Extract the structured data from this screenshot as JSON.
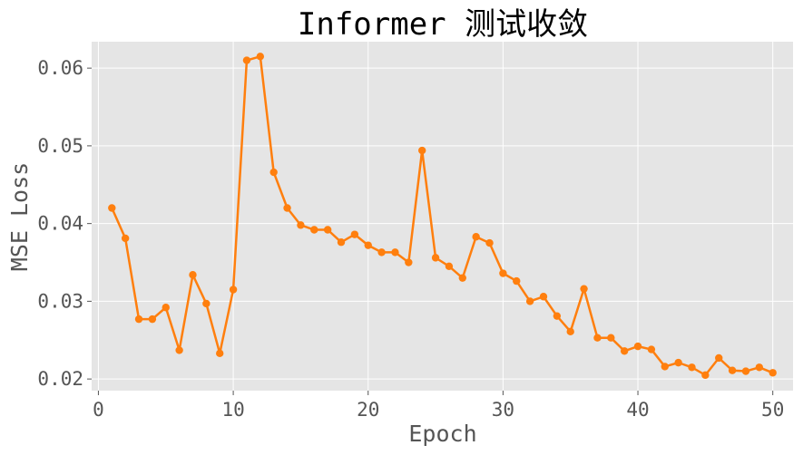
{
  "chart_data": {
    "type": "line",
    "title": "Informer 测试收敛",
    "xlabel": "Epoch",
    "ylabel": "MSE Loss",
    "xlim": [
      -0.5,
      51.5
    ],
    "ylim": [
      0.0185,
      0.0634
    ],
    "xticks": [
      0,
      10,
      20,
      30,
      40,
      50
    ],
    "xtick_labels": [
      "0",
      "10",
      "20",
      "30",
      "40",
      "50"
    ],
    "yticks": [
      0.02,
      0.03,
      0.04,
      0.05,
      0.06
    ],
    "ytick_labels": [
      "0.02",
      "0.03",
      "0.04",
      "0.05",
      "0.06"
    ],
    "grid": true,
    "style": "ggplot",
    "series": [
      {
        "name": "Informer",
        "color": "#ff7f0e",
        "marker": "circle",
        "x": [
          1,
          2,
          3,
          4,
          5,
          6,
          7,
          8,
          9,
          10,
          11,
          12,
          13,
          14,
          15,
          16,
          17,
          18,
          19,
          20,
          21,
          22,
          23,
          24,
          25,
          26,
          27,
          28,
          29,
          30,
          31,
          32,
          33,
          34,
          35,
          36,
          37,
          38,
          39,
          40,
          41,
          42,
          43,
          44,
          45,
          46,
          47,
          48,
          49,
          50
        ],
        "values": [
          0.042,
          0.0381,
          0.0277,
          0.0277,
          0.0292,
          0.0237,
          0.0334,
          0.0297,
          0.0233,
          0.0315,
          0.061,
          0.0615,
          0.0466,
          0.042,
          0.0398,
          0.0392,
          0.0392,
          0.0376,
          0.0386,
          0.0372,
          0.0363,
          0.0363,
          0.035,
          0.0494,
          0.0356,
          0.0345,
          0.033,
          0.0383,
          0.0375,
          0.0336,
          0.0326,
          0.03,
          0.0306,
          0.0281,
          0.0261,
          0.0316,
          0.0253,
          0.0253,
          0.0236,
          0.0242,
          0.0238,
          0.0216,
          0.0221,
          0.0215,
          0.0205,
          0.0227,
          0.0211,
          0.021,
          0.0215,
          0.0208
        ]
      }
    ]
  }
}
